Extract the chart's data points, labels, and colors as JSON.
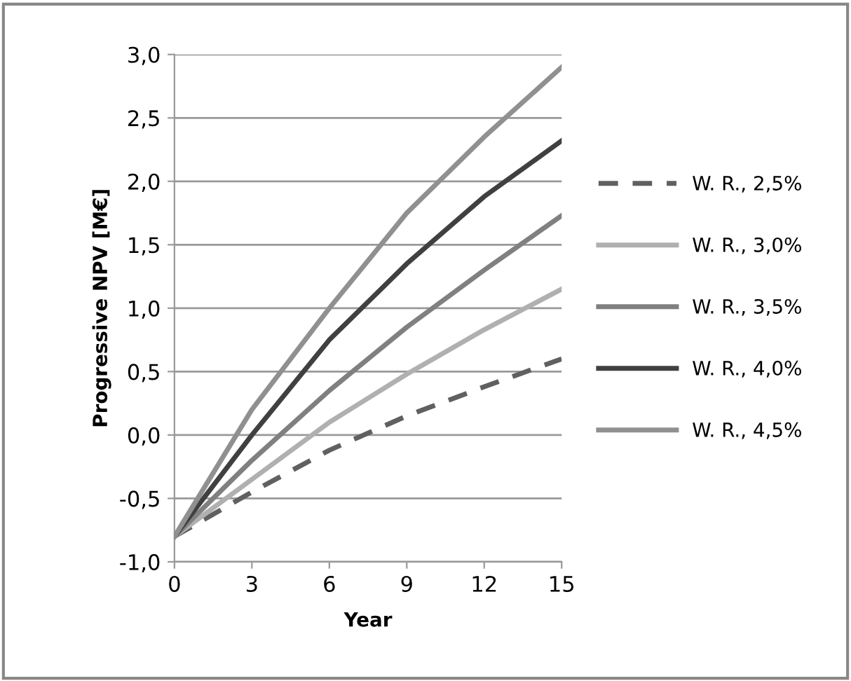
{
  "chart_data": {
    "type": "line",
    "xlabel": "Year",
    "ylabel": "Progressive NPV [M€]",
    "x": [
      0,
      3,
      6,
      9,
      12,
      15
    ],
    "series": [
      {
        "name": "W. R., 2,5%",
        "color": "#606060",
        "line_style": "dashed",
        "values": [
          -0.8,
          -0.45,
          -0.12,
          0.15,
          0.38,
          0.6
        ]
      },
      {
        "name": "W. R., 3,0%",
        "color": "#b0b0b0",
        "line_style": "solid",
        "values": [
          -0.8,
          -0.35,
          0.1,
          0.48,
          0.83,
          1.15
        ]
      },
      {
        "name": "W. R., 3,5%",
        "color": "#808080",
        "line_style": "solid",
        "values": [
          -0.8,
          -0.2,
          0.35,
          0.85,
          1.3,
          1.73
        ]
      },
      {
        "name": "W. R., 4,0%",
        "color": "#404040",
        "line_style": "solid",
        "values": [
          -0.8,
          0.0,
          0.75,
          1.35,
          1.88,
          2.32
        ]
      },
      {
        "name": "W. R., 4,5%",
        "color": "#909090",
        "line_style": "solid",
        "values": [
          -0.8,
          0.2,
          1.0,
          1.75,
          2.35,
          2.9
        ]
      }
    ],
    "xlim": [
      0,
      15
    ],
    "xticks": [
      0,
      3,
      6,
      9,
      12,
      15
    ],
    "ylim": [
      -1.0,
      3.0
    ],
    "yticks": [
      {
        "value": -1.0,
        "label": "-1,0"
      },
      {
        "value": -0.5,
        "label": "-0,5"
      },
      {
        "value": 0.0,
        "label": "0,0"
      },
      {
        "value": 0.5,
        "label": "0,5"
      },
      {
        "value": 1.0,
        "label": "1,0"
      },
      {
        "value": 1.5,
        "label": "1,5"
      },
      {
        "value": 2.0,
        "label": "2,0"
      },
      {
        "value": 2.5,
        "label": "2,5"
      },
      {
        "value": 3.0,
        "label": "3,0"
      }
    ],
    "grid": "y",
    "legend": "right",
    "marker": "none"
  }
}
